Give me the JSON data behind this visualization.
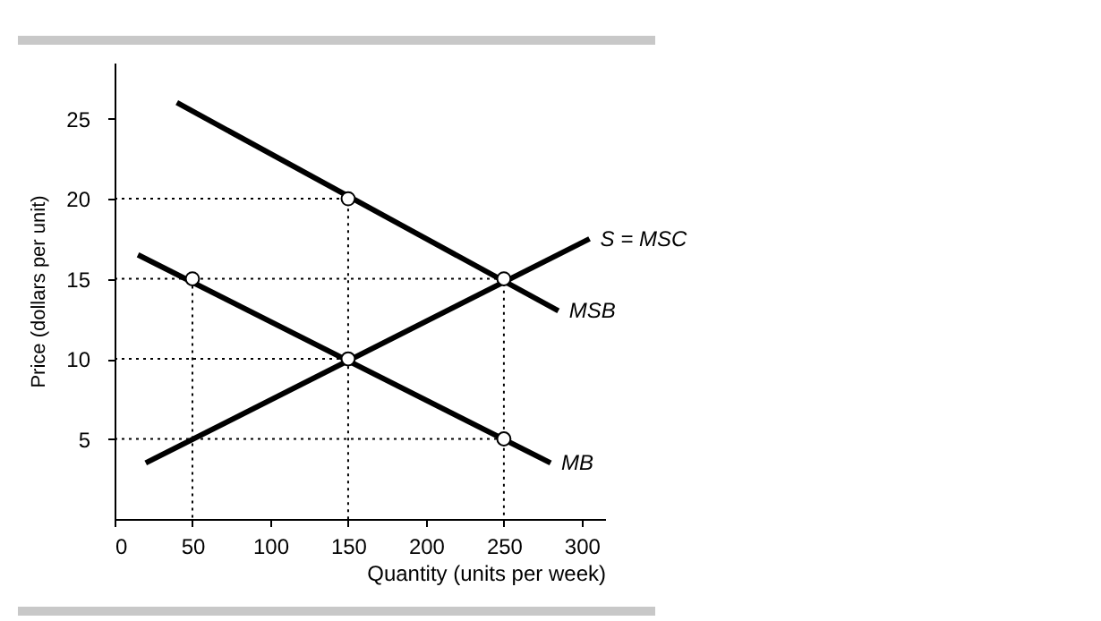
{
  "chart_data": {
    "type": "line",
    "xlabel": "Quantity (units per week)",
    "ylabel": "Price (dollars per unit)",
    "xlim": [
      0,
      315
    ],
    "ylim": [
      0,
      28.5
    ],
    "xticks": [
      0,
      50,
      100,
      150,
      200,
      250,
      300
    ],
    "yticks": [
      5,
      10,
      15,
      20,
      25
    ],
    "grid": false,
    "line_style": "solid",
    "series": [
      {
        "name": "MSB",
        "color": "#000000",
        "x": [
          40,
          285
        ],
        "values": [
          26,
          13
        ]
      },
      {
        "name": "MB",
        "color": "#000000",
        "x": [
          15,
          280
        ],
        "values": [
          16.5,
          3.5
        ]
      },
      {
        "name": "S = MSC",
        "color": "#000000",
        "x": [
          20,
          305
        ],
        "values": [
          3.5,
          17.5
        ]
      },
      {
        "color": "#000000",
        "line_style": "dotted",
        "x": [
          0,
          150,
          150
        ],
        "values": [
          20,
          20,
          0
        ]
      },
      {
        "color": "#000000",
        "line_style": "dotted",
        "x": [
          0,
          250,
          250
        ],
        "values": [
          15,
          15,
          0
        ]
      },
      {
        "color": "#000000",
        "line_style": "dotted",
        "x": [
          0,
          150
        ],
        "values": [
          10,
          10
        ]
      },
      {
        "color": "#000000",
        "line_style": "dotted",
        "x": [
          0,
          250
        ],
        "values": [
          5,
          5
        ]
      },
      {
        "color": "#000000",
        "line_style": "dotted",
        "x": [
          50,
          50
        ],
        "values": [
          15,
          0
        ]
      },
      {
        "type": "scatter",
        "marker": "circle",
        "color": "#ffffff",
        "x": [
          50,
          150,
          150,
          250,
          250
        ],
        "values": [
          15,
          20,
          10,
          15,
          5
        ]
      }
    ]
  }
}
